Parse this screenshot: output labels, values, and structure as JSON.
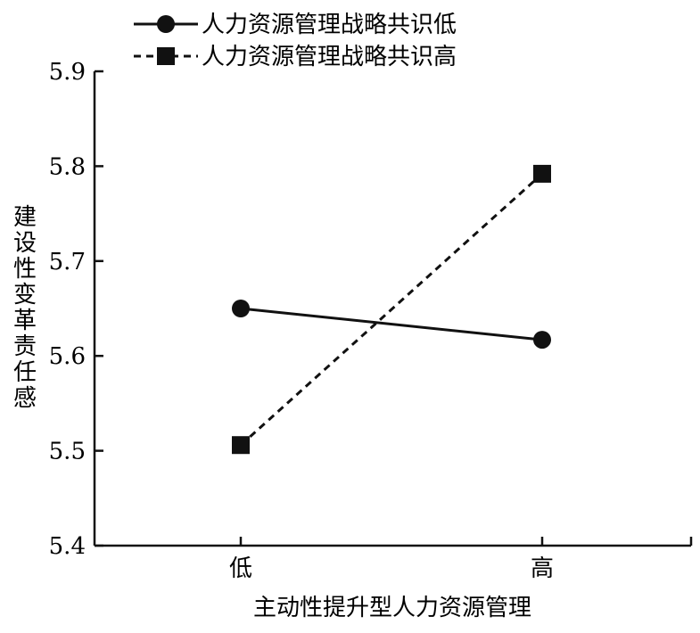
{
  "chart_data": {
    "type": "line",
    "title": "",
    "xlabel": "主动性提升型人力资源管理",
    "ylabel": "建设性变革责任感",
    "categories": [
      "低",
      "高"
    ],
    "ylim": [
      5.4,
      5.9
    ],
    "yticks": [
      "5.4",
      "5.5",
      "5.6",
      "5.7",
      "5.8",
      "5.9"
    ],
    "grid": false,
    "legend_position": "top-left",
    "series": [
      {
        "name": "人力资源管理战略共识低",
        "values": [
          5.65,
          5.617
        ],
        "marker": "circle",
        "line_style": "solid",
        "color": "#111111"
      },
      {
        "name": "人力资源管理战略共识高",
        "values": [
          5.506,
          5.792
        ],
        "marker": "square",
        "line_style": "dashed",
        "color": "#111111"
      }
    ]
  }
}
